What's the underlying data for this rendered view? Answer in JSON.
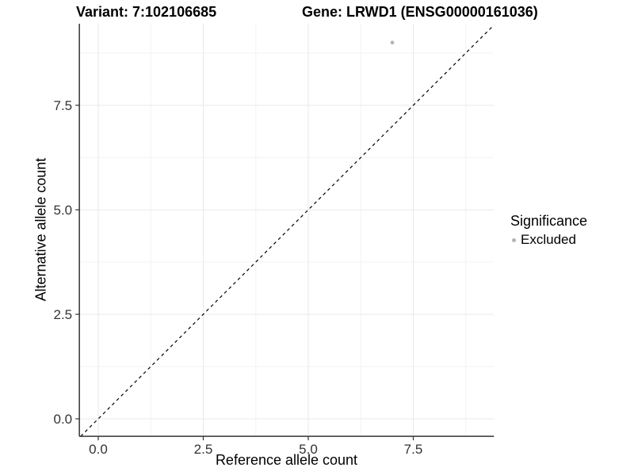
{
  "header": {
    "variant_title": "Variant: 7:102106685",
    "gene_title": "Gene: LRWD1 (ENSG00000161036)"
  },
  "chart_data": {
    "type": "scatter",
    "title_left": "Variant: 7:102106685",
    "title_right": "Gene: LRWD1 (ENSG00000161036)",
    "xlabel": "Reference allele count",
    "ylabel": "Alternative allele count",
    "xlim": [
      -0.45,
      9.42
    ],
    "ylim": [
      -0.42,
      9.45
    ],
    "x_ticks": [
      0,
      2.5,
      5,
      7.5
    ],
    "x_tick_labels": [
      "0.0",
      "2.5",
      "5.0",
      "7.5"
    ],
    "x_minor_ticks": [
      1.25,
      3.75,
      6.25,
      8.75
    ],
    "y_ticks": [
      0,
      2.5,
      5,
      7.5
    ],
    "y_tick_labels": [
      "0.0",
      "2.5",
      "5.0",
      "7.5"
    ],
    "y_minor_ticks": [
      1.25,
      3.75,
      6.25,
      8.75
    ],
    "points": [
      {
        "x": 7,
        "y": 9,
        "significance": "Excluded"
      }
    ],
    "identity_line": {
      "slope": 1,
      "intercept": 0,
      "style": "dashed"
    },
    "grid": true,
    "legend": {
      "position": "right",
      "title": "Significance",
      "items": [
        {
          "label": "Excluded",
          "color": "#b5b5b5"
        }
      ]
    },
    "colors": {
      "point": "#b5b5b5",
      "grid_major": "#e8e8e8",
      "grid_minor": "#f3f3f3",
      "axis": "#333333",
      "identity_line": "#000000",
      "tick_text": "#333333",
      "title_text": "#000000"
    }
  }
}
